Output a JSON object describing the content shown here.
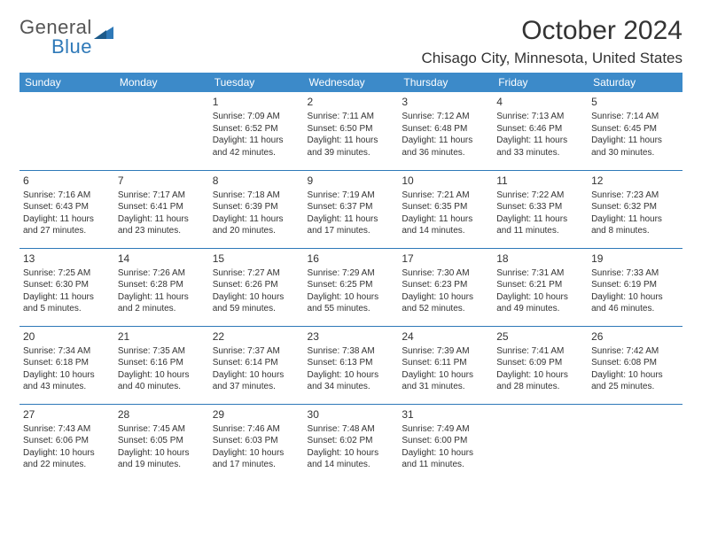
{
  "brand": {
    "line1": "General",
    "line2": "Blue"
  },
  "title": "October 2024",
  "location": "Chisago City, Minnesota, United States",
  "colors": {
    "header_bg": "#3c8ac9",
    "header_text": "#ffffff",
    "rule": "#2e79b8",
    "text": "#333333",
    "background": "#ffffff"
  },
  "day_headers": [
    "Sunday",
    "Monday",
    "Tuesday",
    "Wednesday",
    "Thursday",
    "Friday",
    "Saturday"
  ],
  "weeks": [
    [
      null,
      null,
      {
        "day": "1",
        "sunrise": "Sunrise: 7:09 AM",
        "sunset": "Sunset: 6:52 PM",
        "daylight": "Daylight: 11 hours and 42 minutes."
      },
      {
        "day": "2",
        "sunrise": "Sunrise: 7:11 AM",
        "sunset": "Sunset: 6:50 PM",
        "daylight": "Daylight: 11 hours and 39 minutes."
      },
      {
        "day": "3",
        "sunrise": "Sunrise: 7:12 AM",
        "sunset": "Sunset: 6:48 PM",
        "daylight": "Daylight: 11 hours and 36 minutes."
      },
      {
        "day": "4",
        "sunrise": "Sunrise: 7:13 AM",
        "sunset": "Sunset: 6:46 PM",
        "daylight": "Daylight: 11 hours and 33 minutes."
      },
      {
        "day": "5",
        "sunrise": "Sunrise: 7:14 AM",
        "sunset": "Sunset: 6:45 PM",
        "daylight": "Daylight: 11 hours and 30 minutes."
      }
    ],
    [
      {
        "day": "6",
        "sunrise": "Sunrise: 7:16 AM",
        "sunset": "Sunset: 6:43 PM",
        "daylight": "Daylight: 11 hours and 27 minutes."
      },
      {
        "day": "7",
        "sunrise": "Sunrise: 7:17 AM",
        "sunset": "Sunset: 6:41 PM",
        "daylight": "Daylight: 11 hours and 23 minutes."
      },
      {
        "day": "8",
        "sunrise": "Sunrise: 7:18 AM",
        "sunset": "Sunset: 6:39 PM",
        "daylight": "Daylight: 11 hours and 20 minutes."
      },
      {
        "day": "9",
        "sunrise": "Sunrise: 7:19 AM",
        "sunset": "Sunset: 6:37 PM",
        "daylight": "Daylight: 11 hours and 17 minutes."
      },
      {
        "day": "10",
        "sunrise": "Sunrise: 7:21 AM",
        "sunset": "Sunset: 6:35 PM",
        "daylight": "Daylight: 11 hours and 14 minutes."
      },
      {
        "day": "11",
        "sunrise": "Sunrise: 7:22 AM",
        "sunset": "Sunset: 6:33 PM",
        "daylight": "Daylight: 11 hours and 11 minutes."
      },
      {
        "day": "12",
        "sunrise": "Sunrise: 7:23 AM",
        "sunset": "Sunset: 6:32 PM",
        "daylight": "Daylight: 11 hours and 8 minutes."
      }
    ],
    [
      {
        "day": "13",
        "sunrise": "Sunrise: 7:25 AM",
        "sunset": "Sunset: 6:30 PM",
        "daylight": "Daylight: 11 hours and 5 minutes."
      },
      {
        "day": "14",
        "sunrise": "Sunrise: 7:26 AM",
        "sunset": "Sunset: 6:28 PM",
        "daylight": "Daylight: 11 hours and 2 minutes."
      },
      {
        "day": "15",
        "sunrise": "Sunrise: 7:27 AM",
        "sunset": "Sunset: 6:26 PM",
        "daylight": "Daylight: 10 hours and 59 minutes."
      },
      {
        "day": "16",
        "sunrise": "Sunrise: 7:29 AM",
        "sunset": "Sunset: 6:25 PM",
        "daylight": "Daylight: 10 hours and 55 minutes."
      },
      {
        "day": "17",
        "sunrise": "Sunrise: 7:30 AM",
        "sunset": "Sunset: 6:23 PM",
        "daylight": "Daylight: 10 hours and 52 minutes."
      },
      {
        "day": "18",
        "sunrise": "Sunrise: 7:31 AM",
        "sunset": "Sunset: 6:21 PM",
        "daylight": "Daylight: 10 hours and 49 minutes."
      },
      {
        "day": "19",
        "sunrise": "Sunrise: 7:33 AM",
        "sunset": "Sunset: 6:19 PM",
        "daylight": "Daylight: 10 hours and 46 minutes."
      }
    ],
    [
      {
        "day": "20",
        "sunrise": "Sunrise: 7:34 AM",
        "sunset": "Sunset: 6:18 PM",
        "daylight": "Daylight: 10 hours and 43 minutes."
      },
      {
        "day": "21",
        "sunrise": "Sunrise: 7:35 AM",
        "sunset": "Sunset: 6:16 PM",
        "daylight": "Daylight: 10 hours and 40 minutes."
      },
      {
        "day": "22",
        "sunrise": "Sunrise: 7:37 AM",
        "sunset": "Sunset: 6:14 PM",
        "daylight": "Daylight: 10 hours and 37 minutes."
      },
      {
        "day": "23",
        "sunrise": "Sunrise: 7:38 AM",
        "sunset": "Sunset: 6:13 PM",
        "daylight": "Daylight: 10 hours and 34 minutes."
      },
      {
        "day": "24",
        "sunrise": "Sunrise: 7:39 AM",
        "sunset": "Sunset: 6:11 PM",
        "daylight": "Daylight: 10 hours and 31 minutes."
      },
      {
        "day": "25",
        "sunrise": "Sunrise: 7:41 AM",
        "sunset": "Sunset: 6:09 PM",
        "daylight": "Daylight: 10 hours and 28 minutes."
      },
      {
        "day": "26",
        "sunrise": "Sunrise: 7:42 AM",
        "sunset": "Sunset: 6:08 PM",
        "daylight": "Daylight: 10 hours and 25 minutes."
      }
    ],
    [
      {
        "day": "27",
        "sunrise": "Sunrise: 7:43 AM",
        "sunset": "Sunset: 6:06 PM",
        "daylight": "Daylight: 10 hours and 22 minutes."
      },
      {
        "day": "28",
        "sunrise": "Sunrise: 7:45 AM",
        "sunset": "Sunset: 6:05 PM",
        "daylight": "Daylight: 10 hours and 19 minutes."
      },
      {
        "day": "29",
        "sunrise": "Sunrise: 7:46 AM",
        "sunset": "Sunset: 6:03 PM",
        "daylight": "Daylight: 10 hours and 17 minutes."
      },
      {
        "day": "30",
        "sunrise": "Sunrise: 7:48 AM",
        "sunset": "Sunset: 6:02 PM",
        "daylight": "Daylight: 10 hours and 14 minutes."
      },
      {
        "day": "31",
        "sunrise": "Sunrise: 7:49 AM",
        "sunset": "Sunset: 6:00 PM",
        "daylight": "Daylight: 10 hours and 11 minutes."
      },
      null,
      null
    ]
  ]
}
